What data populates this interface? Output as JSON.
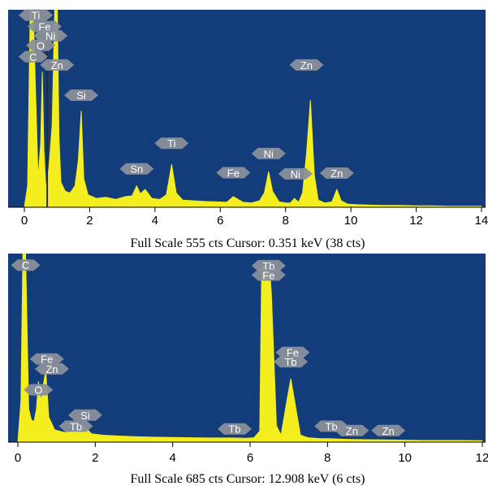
{
  "colors": {
    "plot_background": "#123c7a",
    "spectrum": "#f5ee1e",
    "label_badge": "#8a8f9a",
    "label_text": "#ffffff",
    "cursor_line": "#2a2a2a"
  },
  "chart_data": [
    {
      "type": "line",
      "title": "",
      "xlabel": "",
      "ylabel": "",
      "xlim": [
        0,
        14
      ],
      "ylim": [
        0,
        555
      ],
      "x_ticks": [
        "0",
        "2",
        "4",
        "6",
        "8",
        "10",
        "12",
        "14"
      ],
      "caption": "Full Scale 555 cts Cursor: 0.351 keV (38 cts)",
      "cursor_keV": 0.351,
      "grid": false,
      "series": [
        {
          "x": [
            0.0,
            0.1,
            0.18,
            0.27,
            0.35,
            0.42,
            0.5,
            0.55,
            0.6,
            0.66,
            0.75,
            0.85,
            0.93,
            1.01,
            1.06,
            1.12,
            1.25,
            1.4,
            1.55,
            1.65,
            1.74,
            1.82,
            1.95,
            2.2,
            2.5,
            2.8,
            3.1,
            3.3,
            3.44,
            3.55,
            3.7,
            3.9,
            4.15,
            4.35,
            4.51,
            4.65,
            4.85,
            5.2,
            5.6,
            5.9,
            6.2,
            6.4,
            6.55,
            6.7,
            6.95,
            7.2,
            7.35,
            7.48,
            7.6,
            7.8,
            8.0,
            8.15,
            8.27,
            8.4,
            8.52,
            8.64,
            8.76,
            8.88,
            9.0,
            9.2,
            9.42,
            9.57,
            9.7,
            9.9,
            10.2,
            10.6,
            11.0,
            11.5,
            12.0,
            12.5,
            13.0,
            13.5,
            14.0
          ],
          "y": [
            0,
            60,
            555,
            555,
            300,
            80,
            180,
            380,
            160,
            55,
            110,
            230,
            555,
            555,
            200,
            70,
            45,
            40,
            60,
            130,
            270,
            80,
            35,
            25,
            28,
            22,
            30,
            32,
            60,
            38,
            50,
            25,
            22,
            35,
            120,
            40,
            20,
            18,
            16,
            15,
            14,
            30,
            22,
            14,
            12,
            18,
            40,
            100,
            45,
            15,
            12,
            12,
            25,
            14,
            40,
            150,
            300,
            90,
            20,
            12,
            15,
            50,
            18,
            9,
            7,
            6,
            5,
            5,
            4,
            4,
            3,
            3,
            3
          ]
        }
      ],
      "peak_labels": [
        {
          "text": "Ti",
          "keV": 0.35,
          "cts": 540
        },
        {
          "text": "Fe",
          "keV": 0.62,
          "cts": 508
        },
        {
          "text": "Ni",
          "keV": 0.8,
          "cts": 482
        },
        {
          "text": "O",
          "keV": 0.5,
          "cts": 455
        },
        {
          "text": "C",
          "keV": 0.27,
          "cts": 423
        },
        {
          "text": "Zn",
          "keV": 1.0,
          "cts": 400
        },
        {
          "text": "Si",
          "keV": 1.74,
          "cts": 315
        },
        {
          "text": "Sn",
          "keV": 3.44,
          "cts": 108
        },
        {
          "text": "Ti",
          "keV": 4.51,
          "cts": 180
        },
        {
          "text": "Fe",
          "keV": 6.4,
          "cts": 97
        },
        {
          "text": "Ni",
          "keV": 7.48,
          "cts": 151
        },
        {
          "text": "Ni",
          "keV": 8.3,
          "cts": 94
        },
        {
          "text": "Zn",
          "keV": 8.64,
          "cts": 400
        },
        {
          "text": "Zn",
          "keV": 9.57,
          "cts": 96
        }
      ]
    },
    {
      "type": "line",
      "title": "",
      "xlabel": "",
      "ylabel": "",
      "xlim": [
        0,
        12
      ],
      "ylim": [
        0,
        685
      ],
      "x_ticks": [
        "0",
        "2",
        "4",
        "6",
        "8",
        "10",
        "12"
      ],
      "caption": "Full Scale 685 cts Cursor: 12.908 keV (6 cts)",
      "cursor_keV": 12.908,
      "grid": false,
      "series": [
        {
          "x": [
            0.0,
            0.08,
            0.13,
            0.2,
            0.28,
            0.35,
            0.42,
            0.48,
            0.53,
            0.6,
            0.66,
            0.72,
            0.8,
            0.95,
            1.2,
            1.5,
            1.74,
            1.9,
            2.2,
            2.6,
            3.0,
            3.5,
            4.0,
            4.5,
            5.0,
            5.5,
            5.9,
            6.1,
            6.25,
            6.3,
            6.5,
            6.55,
            6.68,
            6.8,
            6.95,
            7.05,
            7.15,
            7.3,
            7.5,
            7.8,
            8.1,
            8.5,
            9.0,
            9.5,
            10.0,
            10.5,
            11.0,
            11.5,
            12.0
          ],
          "y": [
            0,
            150,
            685,
            685,
            120,
            80,
            75,
            120,
            220,
            150,
            210,
            260,
            90,
            45,
            35,
            40,
            55,
            30,
            25,
            22,
            20,
            18,
            17,
            16,
            15,
            15,
            14,
            16,
            40,
            640,
            640,
            540,
            60,
            25,
            150,
            230,
            150,
            25,
            16,
            13,
            12,
            10,
            9,
            8,
            7,
            6,
            6,
            6,
            5
          ]
        }
      ],
      "peak_labels": [
        {
          "text": "C",
          "keV": 0.2,
          "cts": 643
        },
        {
          "text": "Fe",
          "keV": 0.75,
          "cts": 302
        },
        {
          "text": "Zn",
          "keV": 0.88,
          "cts": 266
        },
        {
          "text": "O",
          "keV": 0.53,
          "cts": 190
        },
        {
          "text": "Si",
          "keV": 1.74,
          "cts": 98
        },
        {
          "text": "Tb",
          "keV": 1.5,
          "cts": 58
        },
        {
          "text": "Tb",
          "keV": 5.6,
          "cts": 48
        },
        {
          "text": "Tb",
          "keV": 6.48,
          "cts": 641
        },
        {
          "text": "Fe",
          "keV": 6.48,
          "cts": 607
        },
        {
          "text": "Fe",
          "keV": 7.1,
          "cts": 326
        },
        {
          "text": "Tb",
          "keV": 7.05,
          "cts": 292
        },
        {
          "text": "Tb",
          "keV": 8.1,
          "cts": 58
        },
        {
          "text": "Zn",
          "keV": 8.63,
          "cts": 42
        },
        {
          "text": "Zn",
          "keV": 9.57,
          "cts": 42
        }
      ]
    }
  ]
}
